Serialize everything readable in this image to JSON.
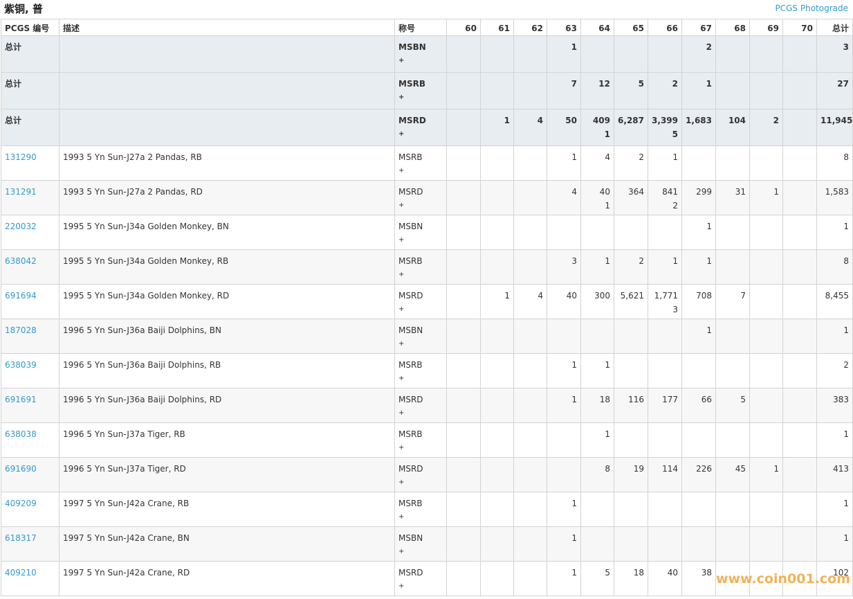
{
  "header": {
    "title": "紫铜, 普",
    "link": "PCGS Photograde"
  },
  "table": {
    "columns": [
      "PCGS 编号",
      "描述",
      "称号",
      "60",
      "61",
      "62",
      "63",
      "64",
      "65",
      "66",
      "67",
      "68",
      "69",
      "70",
      "总计"
    ],
    "total_rows": [
      {
        "label": "总计",
        "designation": "MSBN",
        "plus": "+",
        "counts": [
          null,
          null,
          null,
          "1",
          null,
          null,
          null,
          "2",
          null,
          null,
          null,
          "3"
        ]
      },
      {
        "label": "总计",
        "designation": "MSRB",
        "plus": "+",
        "counts": [
          null,
          null,
          null,
          "7",
          "12",
          "5",
          "2",
          "1",
          null,
          null,
          null,
          "27"
        ]
      },
      {
        "label": "总计",
        "designation": "MSRD",
        "plus": "+",
        "counts": [
          null,
          "1",
          "4",
          "50",
          [
            "409",
            "1"
          ],
          "6,287",
          [
            "3,399",
            "5"
          ],
          "1,683",
          "104",
          "2",
          null,
          "11,945"
        ]
      }
    ],
    "rows": [
      {
        "id": "131290",
        "description": "1993 5 Yn Sun-J27a 2 Pandas, RB",
        "designation": "MSRB",
        "plus": "+",
        "counts": [
          null,
          null,
          null,
          "1",
          "4",
          "2",
          "1",
          null,
          null,
          null,
          null,
          "8"
        ]
      },
      {
        "id": "131291",
        "description": "1993 5 Yn Sun-J27a 2 Pandas, RD",
        "designation": "MSRD",
        "plus": "+",
        "counts": [
          null,
          null,
          null,
          "4",
          [
            "40",
            "1"
          ],
          "364",
          [
            "841",
            "2"
          ],
          "299",
          "31",
          "1",
          null,
          "1,583"
        ]
      },
      {
        "id": "220032",
        "description": "1995 5 Yn Sun-J34a Golden Monkey, BN",
        "designation": "MSBN",
        "plus": "+",
        "counts": [
          null,
          null,
          null,
          null,
          null,
          null,
          null,
          "1",
          null,
          null,
          null,
          "1"
        ]
      },
      {
        "id": "638042",
        "description": "1995 5 Yn Sun-J34a Golden Monkey, RB",
        "designation": "MSRB",
        "plus": "+",
        "counts": [
          null,
          null,
          null,
          "3",
          "1",
          "2",
          "1",
          "1",
          null,
          null,
          null,
          "8"
        ]
      },
      {
        "id": "691694",
        "description": "1995 5 Yn Sun-J34a Golden Monkey, RD",
        "designation": "MSRD",
        "plus": "+",
        "counts": [
          null,
          "1",
          "4",
          "40",
          "300",
          "5,621",
          [
            "1,771",
            "3"
          ],
          "708",
          "7",
          null,
          null,
          "8,455"
        ]
      },
      {
        "id": "187028",
        "description": "1996 5 Yn Sun-J36a Baiji Dolphins, BN",
        "designation": "MSBN",
        "plus": "+",
        "counts": [
          null,
          null,
          null,
          null,
          null,
          null,
          null,
          "1",
          null,
          null,
          null,
          "1"
        ]
      },
      {
        "id": "638039",
        "description": "1996 5 Yn Sun-J36a Baiji Dolphins, RB",
        "designation": "MSRB",
        "plus": "+",
        "counts": [
          null,
          null,
          null,
          "1",
          "1",
          null,
          null,
          null,
          null,
          null,
          null,
          "2"
        ]
      },
      {
        "id": "691691",
        "description": "1996 5 Yn Sun-J36a Baiji Dolphins, RD",
        "designation": "MSRD",
        "plus": "+",
        "counts": [
          null,
          null,
          null,
          "1",
          "18",
          "116",
          "177",
          "66",
          "5",
          null,
          null,
          "383"
        ]
      },
      {
        "id": "638038",
        "description": "1996 5 Yn Sun-J37a Tiger, RB",
        "designation": "MSRB",
        "plus": "+",
        "counts": [
          null,
          null,
          null,
          null,
          "1",
          null,
          null,
          null,
          null,
          null,
          null,
          "1"
        ]
      },
      {
        "id": "691690",
        "description": "1996 5 Yn Sun-J37a Tiger, RD",
        "designation": "MSRD",
        "plus": "+",
        "counts": [
          null,
          null,
          null,
          null,
          "8",
          "19",
          "114",
          "226",
          "45",
          "1",
          null,
          "413"
        ]
      },
      {
        "id": "409209",
        "description": "1997 5 Yn Sun-J42a Crane, RB",
        "designation": "MSRB",
        "plus": "+",
        "counts": [
          null,
          null,
          null,
          "1",
          null,
          null,
          null,
          null,
          null,
          null,
          null,
          "1"
        ]
      },
      {
        "id": "618317",
        "description": "1997 5 Yn Sun-J42a Crane, BN",
        "designation": "MSBN",
        "plus": "+",
        "counts": [
          null,
          null,
          null,
          "1",
          null,
          null,
          null,
          null,
          null,
          null,
          null,
          "1"
        ]
      },
      {
        "id": "409210",
        "description": "1997 5 Yn Sun-J42a Crane, RD",
        "designation": "MSRD",
        "plus": "+",
        "counts": [
          null,
          null,
          null,
          "1",
          "5",
          "18",
          "40",
          "38",
          null,
          null,
          null,
          "102"
        ]
      }
    ]
  },
  "watermark": "www.coin001.com"
}
